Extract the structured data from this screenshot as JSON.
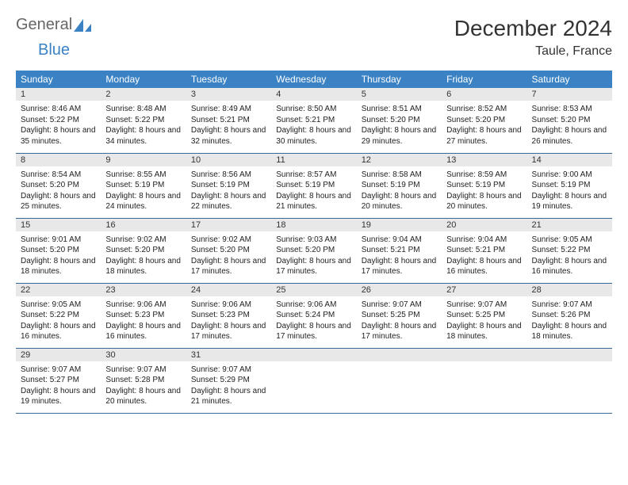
{
  "brand": {
    "text1": "General",
    "text2": "Blue",
    "logo_color": "#3a82c4"
  },
  "title": "December 2024",
  "location": "Taule, France",
  "colors": {
    "header_bg": "#3a82c4",
    "header_fg": "#ffffff",
    "daynum_bg": "#e8e8e8",
    "row_divider": "#3a6a9a",
    "text": "#222222"
  },
  "weekdays": [
    "Sunday",
    "Monday",
    "Tuesday",
    "Wednesday",
    "Thursday",
    "Friday",
    "Saturday"
  ],
  "weeks": [
    [
      {
        "n": "1",
        "sr": "8:46 AM",
        "ss": "5:22 PM",
        "dl": "8 hours and 35 minutes."
      },
      {
        "n": "2",
        "sr": "8:48 AM",
        "ss": "5:22 PM",
        "dl": "8 hours and 34 minutes."
      },
      {
        "n": "3",
        "sr": "8:49 AM",
        "ss": "5:21 PM",
        "dl": "8 hours and 32 minutes."
      },
      {
        "n": "4",
        "sr": "8:50 AM",
        "ss": "5:21 PM",
        "dl": "8 hours and 30 minutes."
      },
      {
        "n": "5",
        "sr": "8:51 AM",
        "ss": "5:20 PM",
        "dl": "8 hours and 29 minutes."
      },
      {
        "n": "6",
        "sr": "8:52 AM",
        "ss": "5:20 PM",
        "dl": "8 hours and 27 minutes."
      },
      {
        "n": "7",
        "sr": "8:53 AM",
        "ss": "5:20 PM",
        "dl": "8 hours and 26 minutes."
      }
    ],
    [
      {
        "n": "8",
        "sr": "8:54 AM",
        "ss": "5:20 PM",
        "dl": "8 hours and 25 minutes."
      },
      {
        "n": "9",
        "sr": "8:55 AM",
        "ss": "5:19 PM",
        "dl": "8 hours and 24 minutes."
      },
      {
        "n": "10",
        "sr": "8:56 AM",
        "ss": "5:19 PM",
        "dl": "8 hours and 22 minutes."
      },
      {
        "n": "11",
        "sr": "8:57 AM",
        "ss": "5:19 PM",
        "dl": "8 hours and 21 minutes."
      },
      {
        "n": "12",
        "sr": "8:58 AM",
        "ss": "5:19 PM",
        "dl": "8 hours and 20 minutes."
      },
      {
        "n": "13",
        "sr": "8:59 AM",
        "ss": "5:19 PM",
        "dl": "8 hours and 20 minutes."
      },
      {
        "n": "14",
        "sr": "9:00 AM",
        "ss": "5:19 PM",
        "dl": "8 hours and 19 minutes."
      }
    ],
    [
      {
        "n": "15",
        "sr": "9:01 AM",
        "ss": "5:20 PM",
        "dl": "8 hours and 18 minutes."
      },
      {
        "n": "16",
        "sr": "9:02 AM",
        "ss": "5:20 PM",
        "dl": "8 hours and 18 minutes."
      },
      {
        "n": "17",
        "sr": "9:02 AM",
        "ss": "5:20 PM",
        "dl": "8 hours and 17 minutes."
      },
      {
        "n": "18",
        "sr": "9:03 AM",
        "ss": "5:20 PM",
        "dl": "8 hours and 17 minutes."
      },
      {
        "n": "19",
        "sr": "9:04 AM",
        "ss": "5:21 PM",
        "dl": "8 hours and 17 minutes."
      },
      {
        "n": "20",
        "sr": "9:04 AM",
        "ss": "5:21 PM",
        "dl": "8 hours and 16 minutes."
      },
      {
        "n": "21",
        "sr": "9:05 AM",
        "ss": "5:22 PM",
        "dl": "8 hours and 16 minutes."
      }
    ],
    [
      {
        "n": "22",
        "sr": "9:05 AM",
        "ss": "5:22 PM",
        "dl": "8 hours and 16 minutes."
      },
      {
        "n": "23",
        "sr": "9:06 AM",
        "ss": "5:23 PM",
        "dl": "8 hours and 16 minutes."
      },
      {
        "n": "24",
        "sr": "9:06 AM",
        "ss": "5:23 PM",
        "dl": "8 hours and 17 minutes."
      },
      {
        "n": "25",
        "sr": "9:06 AM",
        "ss": "5:24 PM",
        "dl": "8 hours and 17 minutes."
      },
      {
        "n": "26",
        "sr": "9:07 AM",
        "ss": "5:25 PM",
        "dl": "8 hours and 17 minutes."
      },
      {
        "n": "27",
        "sr": "9:07 AM",
        "ss": "5:25 PM",
        "dl": "8 hours and 18 minutes."
      },
      {
        "n": "28",
        "sr": "9:07 AM",
        "ss": "5:26 PM",
        "dl": "8 hours and 18 minutes."
      }
    ],
    [
      {
        "n": "29",
        "sr": "9:07 AM",
        "ss": "5:27 PM",
        "dl": "8 hours and 19 minutes."
      },
      {
        "n": "30",
        "sr": "9:07 AM",
        "ss": "5:28 PM",
        "dl": "8 hours and 20 minutes."
      },
      {
        "n": "31",
        "sr": "9:07 AM",
        "ss": "5:29 PM",
        "dl": "8 hours and 21 minutes."
      },
      null,
      null,
      null,
      null
    ]
  ],
  "labels": {
    "sunrise": "Sunrise:",
    "sunset": "Sunset:",
    "daylight": "Daylight:"
  }
}
